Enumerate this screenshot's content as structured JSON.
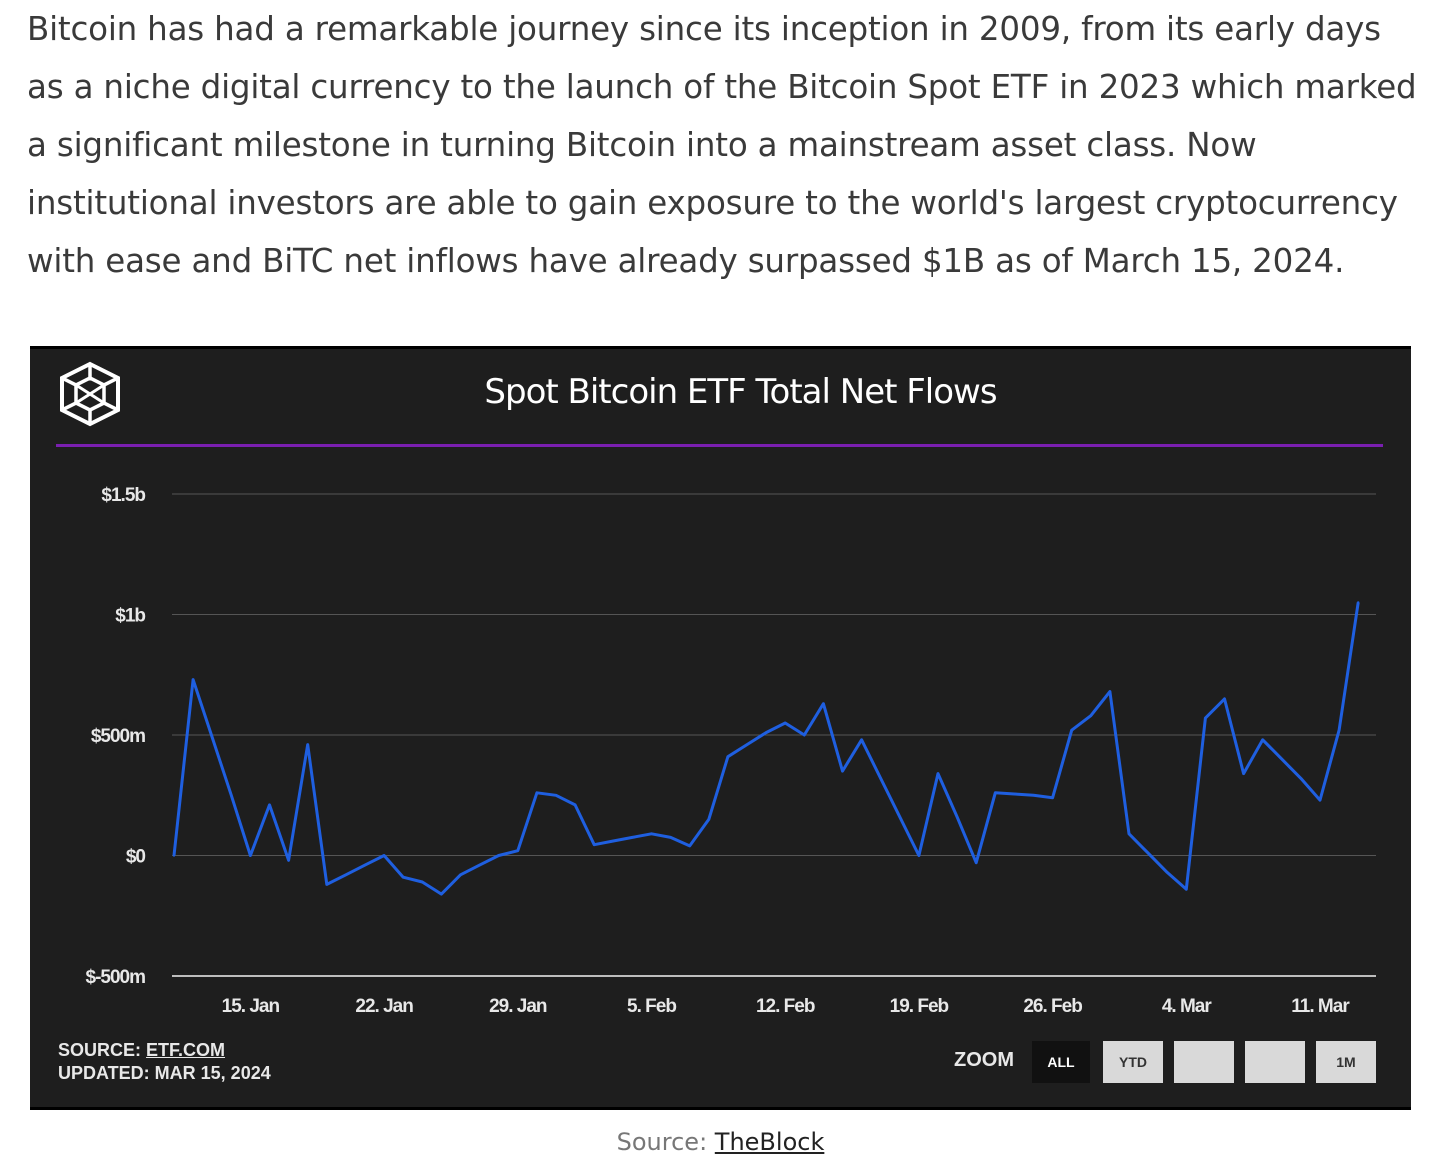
{
  "article": {
    "paragraph": "Bitcoin has had a remarkable journey since its inception in 2009, from its early days as a niche digital currency to the launch of the Bitcoin Spot ETF in 2023 which marked a significant milestone in turning Bitcoin into a mainstream asset class. Now institutional investors are able to gain exposure to the world's largest cryptocurrency with ease and BiTC net inflows have already surpassed $1B as of March 15, 2024."
  },
  "chart_data": {
    "type": "line",
    "title": "Spot Bitcoin ETF Total Net Flows",
    "xlabel": "",
    "ylabel": "",
    "y_unit": "USD millions",
    "ylim": [
      -500,
      1500
    ],
    "y_ticks": [
      {
        "value": 1500,
        "label": "$1.5b"
      },
      {
        "value": 1000,
        "label": "$1b"
      },
      {
        "value": 500,
        "label": "$500m"
      },
      {
        "value": 0,
        "label": "$0"
      },
      {
        "value": -500,
        "label": "$-500m"
      }
    ],
    "x_ticks": [
      {
        "date": "2024-01-15",
        "label": "15. Jan"
      },
      {
        "date": "2024-01-22",
        "label": "22. Jan"
      },
      {
        "date": "2024-01-29",
        "label": "29. Jan"
      },
      {
        "date": "2024-02-05",
        "label": "5. Feb"
      },
      {
        "date": "2024-02-12",
        "label": "12. Feb"
      },
      {
        "date": "2024-02-19",
        "label": "19. Feb"
      },
      {
        "date": "2024-02-26",
        "label": "26. Feb"
      },
      {
        "date": "2024-03-04",
        "label": "4. Mar"
      },
      {
        "date": "2024-03-11",
        "label": "11. Mar"
      }
    ],
    "xlim": [
      "2024-01-11",
      "2024-03-14"
    ],
    "grid": true,
    "legend": "none",
    "series": [
      {
        "color": "#1f5fe0",
        "points": [
          {
            "date": "2024-01-11",
            "value": 0
          },
          {
            "date": "2024-01-12",
            "value": 730
          },
          {
            "date": "2024-01-13",
            "value": 490
          },
          {
            "date": "2024-01-14",
            "value": 250
          },
          {
            "date": "2024-01-15",
            "value": 0
          },
          {
            "date": "2024-01-16",
            "value": 210
          },
          {
            "date": "2024-01-17",
            "value": -20
          },
          {
            "date": "2024-01-18",
            "value": 460
          },
          {
            "date": "2024-01-19",
            "value": -120
          },
          {
            "date": "2024-01-20",
            "value": -80
          },
          {
            "date": "2024-01-21",
            "value": -40
          },
          {
            "date": "2024-01-22",
            "value": 0
          },
          {
            "date": "2024-01-23",
            "value": -90
          },
          {
            "date": "2024-01-24",
            "value": -110
          },
          {
            "date": "2024-01-25",
            "value": -160
          },
          {
            "date": "2024-01-26",
            "value": -80
          },
          {
            "date": "2024-01-27",
            "value": -40
          },
          {
            "date": "2024-01-28",
            "value": 0
          },
          {
            "date": "2024-01-29",
            "value": 20
          },
          {
            "date": "2024-01-30",
            "value": 260
          },
          {
            "date": "2024-01-31",
            "value": 250
          },
          {
            "date": "2024-02-01",
            "value": 210
          },
          {
            "date": "2024-02-02",
            "value": 45
          },
          {
            "date": "2024-02-03",
            "value": 60
          },
          {
            "date": "2024-02-04",
            "value": 75
          },
          {
            "date": "2024-02-05",
            "value": 90
          },
          {
            "date": "2024-02-06",
            "value": 75
          },
          {
            "date": "2024-02-07",
            "value": 40
          },
          {
            "date": "2024-02-08",
            "value": 150
          },
          {
            "date": "2024-02-09",
            "value": 410
          },
          {
            "date": "2024-02-10",
            "value": 460
          },
          {
            "date": "2024-02-11",
            "value": 510
          },
          {
            "date": "2024-02-12",
            "value": 550
          },
          {
            "date": "2024-02-13",
            "value": 500
          },
          {
            "date": "2024-02-14",
            "value": 630
          },
          {
            "date": "2024-02-15",
            "value": 350
          },
          {
            "date": "2024-02-16",
            "value": 480
          },
          {
            "date": "2024-02-17",
            "value": 320
          },
          {
            "date": "2024-02-18",
            "value": 160
          },
          {
            "date": "2024-02-19",
            "value": 0
          },
          {
            "date": "2024-02-20",
            "value": 340
          },
          {
            "date": "2024-02-21",
            "value": 160
          },
          {
            "date": "2024-02-22",
            "value": -30
          },
          {
            "date": "2024-02-23",
            "value": 260
          },
          {
            "date": "2024-02-24",
            "value": 255
          },
          {
            "date": "2024-02-25",
            "value": 250
          },
          {
            "date": "2024-02-26",
            "value": 240
          },
          {
            "date": "2024-02-27",
            "value": 520
          },
          {
            "date": "2024-02-28",
            "value": 580
          },
          {
            "date": "2024-02-29",
            "value": 680
          },
          {
            "date": "2024-03-01",
            "value": 90
          },
          {
            "date": "2024-03-02",
            "value": 10
          },
          {
            "date": "2024-03-03",
            "value": -70
          },
          {
            "date": "2024-03-04",
            "value": -140
          },
          {
            "date": "2024-03-05",
            "value": 570
          },
          {
            "date": "2024-03-06",
            "value": 650
          },
          {
            "date": "2024-03-07",
            "value": 340
          },
          {
            "date": "2024-03-08",
            "value": 480
          },
          {
            "date": "2024-03-09",
            "value": 400
          },
          {
            "date": "2024-03-10",
            "value": 320
          },
          {
            "date": "2024-03-11",
            "value": 230
          },
          {
            "date": "2024-03-12",
            "value": 520
          },
          {
            "date": "2024-03-13",
            "value": 1050
          }
        ]
      }
    ]
  },
  "chart_footer": {
    "source_prefix": "SOURCE: ",
    "source_link": "ETF.COM",
    "updated": "UPDATED: MAR 15, 2024"
  },
  "zoom": {
    "label": "ZOOM",
    "buttons": [
      {
        "label": "ALL",
        "active": true
      },
      {
        "label": "YTD",
        "active": false
      },
      {
        "label": "",
        "active": false
      },
      {
        "label": "",
        "active": false
      },
      {
        "label": "1M",
        "active": false
      }
    ]
  },
  "caption": {
    "prefix": "Source: ",
    "link": "TheBlock"
  },
  "colors": {
    "chart_background": "#1e1e1e",
    "line": "#1f5fe0",
    "accent_rule": "#7a1fb0",
    "grid": "#555555"
  },
  "icons": {
    "logo": "theblock-cube-logo"
  }
}
